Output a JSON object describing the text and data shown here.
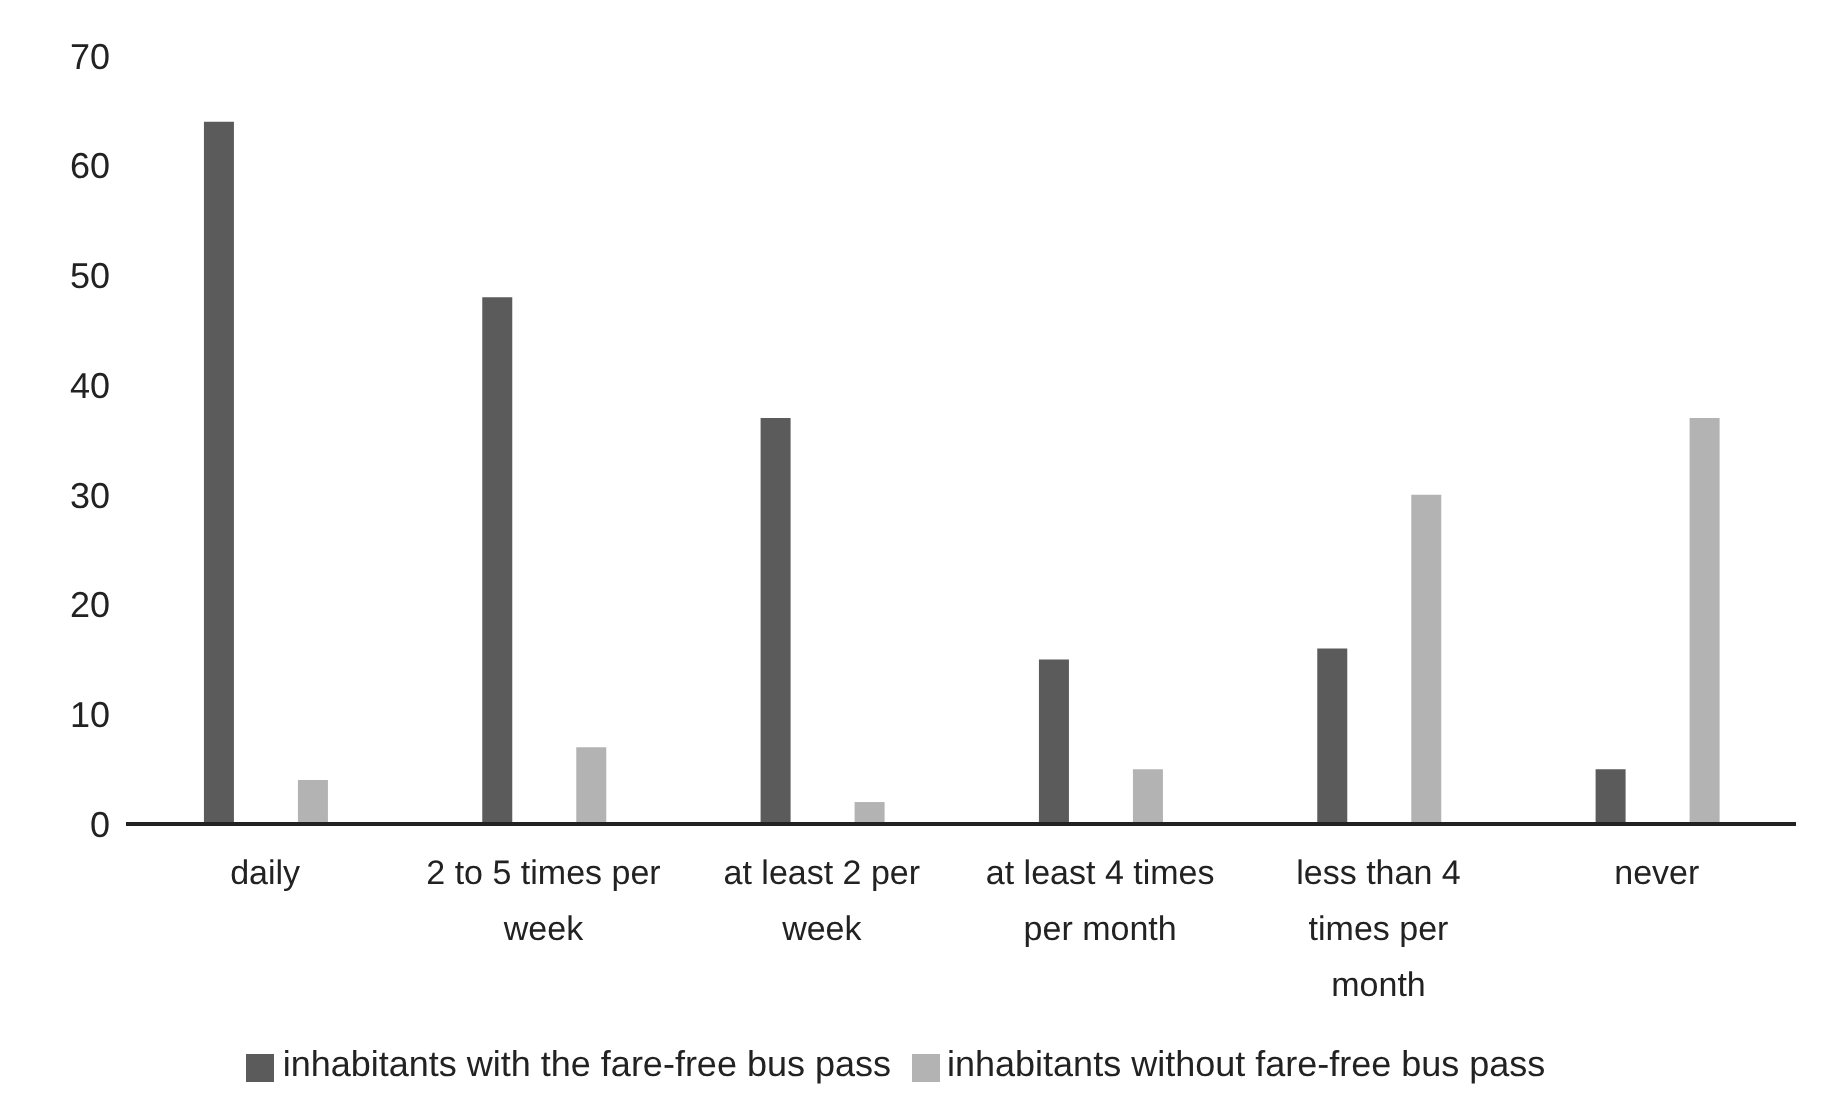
{
  "chart_data": {
    "type": "bar",
    "categories": [
      "daily",
      "2 to 5 times per week",
      "at least 2 per week",
      "at least 4 times per month",
      "less than 4 times per month",
      "never"
    ],
    "series": [
      {
        "name": "inhabitants with the fare-free bus pass",
        "color": "#5b5b5b",
        "values": [
          64,
          48,
          37,
          15,
          16,
          5
        ]
      },
      {
        "name": "inhabitants without fare-free bus pass",
        "color": "#b3b3b3",
        "values": [
          4,
          7,
          2,
          5,
          30,
          37
        ]
      }
    ],
    "ylim": [
      0,
      70
    ],
    "yticks": [
      0,
      10,
      20,
      30,
      40,
      50,
      60,
      70
    ],
    "grid": false,
    "legend": "bottom"
  }
}
